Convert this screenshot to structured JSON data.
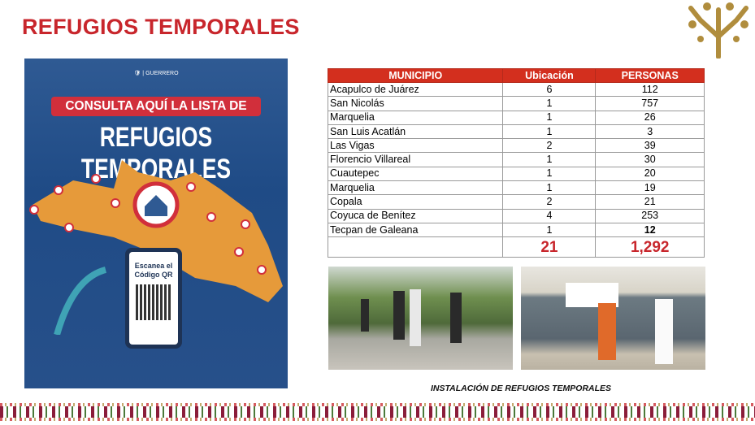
{
  "slide": {
    "title": "REFUGIOS TEMPORALES",
    "caption": "INSTALACIÓN DE REFUGIOS TEMPORALES"
  },
  "poster": {
    "gov_label": "GUERRERO",
    "banner": "CONSULTA AQUÍ LA LISTA DE",
    "headline": "REFUGIOS TEMPORALES",
    "qr_text_1": "Escanea el",
    "qr_text_2": "Código QR"
  },
  "table": {
    "headers": [
      "MUNICIPIO",
      "Ubicación",
      "PERSONAS"
    ],
    "rows": [
      [
        "Acapulco de Juárez",
        "6",
        "112"
      ],
      [
        "San Nicolás",
        "1",
        "757"
      ],
      [
        "Marquelia",
        "1",
        "26"
      ],
      [
        "San Luis Acatlán",
        "1",
        "3"
      ],
      [
        "Las Vigas",
        "2",
        "39"
      ],
      [
        "Florencio Villareal",
        "1",
        "30"
      ],
      [
        "Cuautepec",
        "1",
        "20"
      ],
      [
        "Marquelia",
        "1",
        "19"
      ],
      [
        "Copala",
        "2",
        "21"
      ],
      [
        "Coyuca de Benítez",
        "4",
        "253"
      ],
      [
        "Tecpan de Galeana",
        "1",
        "12"
      ]
    ],
    "total": {
      "ubicacion": "21",
      "personas": "1,292"
    }
  },
  "colors": {
    "accent": "#c8262c",
    "header": "#d32f1e",
    "poster_blue": "#1f4b86",
    "map_orange": "#e69a3a",
    "logo_gold": "#b08d3d"
  }
}
